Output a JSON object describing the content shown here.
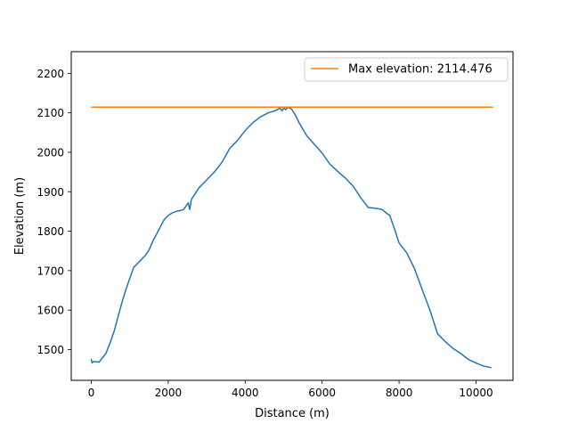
{
  "chart_data": {
    "type": "line",
    "title": "",
    "xlabel": "Distance (m)",
    "ylabel": "Elevation (m)",
    "xlim": [
      -520,
      10960
    ],
    "ylim": [
      1422,
      2255
    ],
    "xticks": [
      0,
      2000,
      4000,
      6000,
      8000,
      10000
    ],
    "yticks": [
      1500,
      1600,
      1700,
      1800,
      1900,
      2000,
      2100,
      2200
    ],
    "grid": false,
    "legend_position": "top-right",
    "colors": {
      "profile": "#1f77b4",
      "max_line": "#ff7f0e"
    },
    "series": [
      {
        "key": "profile",
        "x": [
          0,
          20,
          60,
          200,
          380,
          500,
          600,
          700,
          800,
          900,
          1000,
          1100,
          1200,
          1300,
          1400,
          1500,
          1600,
          1700,
          1800,
          1900,
          2000,
          2100,
          2200,
          2300,
          2400,
          2520,
          2560,
          2600,
          2700,
          2800,
          2900,
          3000,
          3200,
          3400,
          3600,
          3800,
          4000,
          4200,
          4400,
          4600,
          4800,
          4900,
          4960,
          5000,
          5060,
          5100,
          5200,
          5300,
          5400,
          5600,
          5800,
          6000,
          6200,
          6400,
          6600,
          6800,
          7000,
          7200,
          7400,
          7560,
          7680,
          7760,
          7800,
          7900,
          8000,
          8200,
          8400,
          8600,
          8800,
          9000,
          9200,
          9400,
          9600,
          9800,
          10000,
          10200,
          10400
        ],
        "y": [
          1476,
          1466,
          1470,
          1468,
          1490,
          1520,
          1548,
          1585,
          1620,
          1652,
          1680,
          1708,
          1718,
          1728,
          1738,
          1752,
          1775,
          1793,
          1812,
          1830,
          1840,
          1846,
          1850,
          1852,
          1855,
          1872,
          1855,
          1880,
          1895,
          1910,
          1920,
          1930,
          1950,
          1975,
          2010,
          2030,
          2055,
          2075,
          2090,
          2100,
          2106,
          2112,
          2105,
          2112,
          2108,
          2114,
          2110,
          2095,
          2075,
          2042,
          2020,
          1998,
          1970,
          1952,
          1935,
          1915,
          1885,
          1860,
          1858,
          1855,
          1845,
          1840,
          1828,
          1800,
          1770,
          1745,
          1705,
          1652,
          1600,
          1540,
          1520,
          1503,
          1490,
          1475,
          1466,
          1458,
          1454
        ]
      },
      {
        "key": "max_line",
        "name": "Max elevation: 2114.476",
        "x": [
          0,
          10440
        ],
        "y": [
          2114.476,
          2114.476
        ]
      }
    ]
  }
}
